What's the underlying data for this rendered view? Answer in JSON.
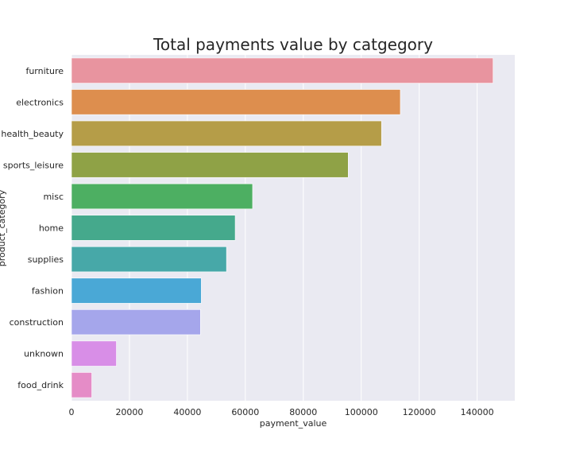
{
  "chart_data": {
    "type": "bar",
    "orientation": "horizontal",
    "title": "Total payments value by catgegory",
    "xlabel": "payment_value",
    "ylabel": "product_category",
    "categories": [
      "furniture",
      "electronics",
      "health_beauty",
      "sports_leisure",
      "misc",
      "home",
      "supplies",
      "fashion",
      "construction",
      "unknown",
      "food_drink"
    ],
    "values": [
      145500,
      113500,
      107000,
      95500,
      62500,
      56500,
      53500,
      44800,
      44500,
      15500,
      7000
    ],
    "colors": [
      "#e8949f",
      "#dd8e4e",
      "#b59d48",
      "#8fa246",
      "#4daf62",
      "#45a98c",
      "#47a8a8",
      "#4aa8d6",
      "#a5a6eb",
      "#d88ee7",
      "#e58cc7"
    ],
    "xlim": [
      0,
      153000
    ],
    "xticks": [
      0,
      20000,
      40000,
      60000,
      80000,
      100000,
      120000,
      140000
    ],
    "xtick_labels": [
      "0",
      "20000",
      "40000",
      "60000",
      "80000",
      "100000",
      "120000",
      "140000"
    ],
    "grid": true,
    "style": "seaborn-darkgrid",
    "background": "#eaeaf2",
    "grid_color": "#ffffff"
  }
}
